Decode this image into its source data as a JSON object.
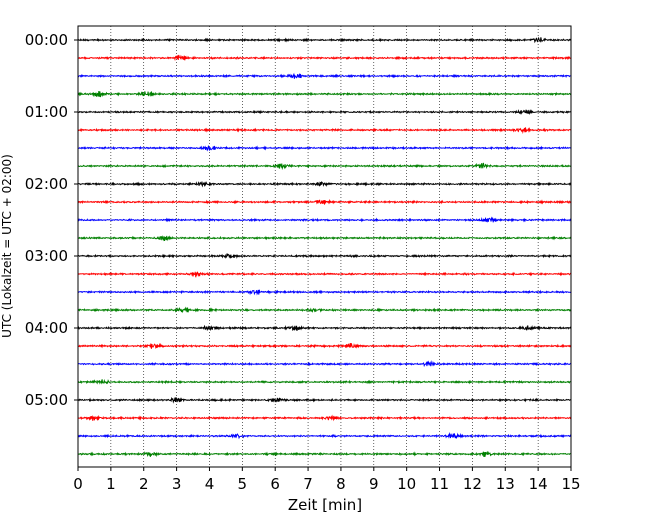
{
  "chart_data": {
    "type": "line",
    "title": "",
    "xlabel": "Zeit  [min]",
    "ylabel": "UTC (Lokalzeit = UTC + 02:00)",
    "xlim": [
      0,
      15
    ],
    "x_ticks": [
      0,
      1,
      2,
      3,
      4,
      5,
      6,
      7,
      8,
      9,
      10,
      11,
      12,
      13,
      14,
      15
    ],
    "x_tick_labels": [
      "0",
      "1",
      "2",
      "3",
      "4",
      "5",
      "6",
      "7",
      "8",
      "9",
      "10",
      "11",
      "12",
      "13",
      "14",
      "15"
    ],
    "y_tick_labels": [
      "00:00",
      "01:00",
      "02:00",
      "03:00",
      "04:00",
      "05:00"
    ],
    "y_tick_trace_index": [
      0,
      4,
      8,
      12,
      16,
      20
    ],
    "trace_start_times": [
      "00:00",
      "00:15",
      "00:30",
      "00:45",
      "01:00",
      "01:15",
      "01:30",
      "01:45",
      "02:00",
      "02:15",
      "02:30",
      "02:45",
      "03:00",
      "03:15",
      "03:30",
      "03:45",
      "04:00",
      "04:15",
      "04:30",
      "04:45",
      "05:00",
      "05:15",
      "05:30",
      "05:45"
    ],
    "trace_duration_min": 15,
    "trace_colors": [
      "#000000",
      "#ff0000",
      "#0000ff",
      "#008000"
    ],
    "grid": "vertical dotted at each minute",
    "legend": "none",
    "series": [
      {
        "time": "00:00",
        "bursts_min": [
          14.0
        ]
      },
      {
        "time": "00:15",
        "bursts_min": [
          3.1
        ]
      },
      {
        "time": "00:30",
        "bursts_min": [
          6.6
        ]
      },
      {
        "time": "00:45",
        "bursts_min": [
          0.6,
          2.1
        ]
      },
      {
        "time": "01:00",
        "bursts_min": [
          13.6
        ]
      },
      {
        "time": "01:15",
        "bursts_min": [
          13.5
        ]
      },
      {
        "time": "01:30",
        "bursts_min": [
          4.0
        ]
      },
      {
        "time": "01:45",
        "bursts_min": [
          6.2,
          12.3
        ]
      },
      {
        "time": "02:00",
        "bursts_min": [
          3.8,
          7.4
        ]
      },
      {
        "time": "02:15",
        "bursts_min": [
          7.4
        ]
      },
      {
        "time": "02:30",
        "bursts_min": [
          12.5
        ]
      },
      {
        "time": "02:45",
        "bursts_min": [
          2.6
        ]
      },
      {
        "time": "03:00",
        "bursts_min": [
          4.6
        ]
      },
      {
        "time": "03:15",
        "bursts_min": [
          3.6
        ]
      },
      {
        "time": "03:30",
        "bursts_min": [
          5.4
        ]
      },
      {
        "time": "03:45",
        "bursts_min": [
          3.2,
          7.2
        ]
      },
      {
        "time": "04:00",
        "bursts_min": [
          4.0,
          6.6,
          13.7
        ]
      },
      {
        "time": "04:15",
        "bursts_min": [
          2.3,
          8.3
        ]
      },
      {
        "time": "04:30",
        "bursts_min": [
          10.7
        ]
      },
      {
        "time": "04:45",
        "bursts_min": [
          0.7
        ]
      },
      {
        "time": "05:00",
        "bursts_min": [
          3.0,
          6.0
        ]
      },
      {
        "time": "05:15",
        "bursts_min": [
          0.5,
          7.7
        ]
      },
      {
        "time": "05:30",
        "bursts_min": [
          4.8,
          11.4
        ]
      },
      {
        "time": "05:45",
        "bursts_min": [
          2.2,
          12.4
        ]
      }
    ]
  }
}
